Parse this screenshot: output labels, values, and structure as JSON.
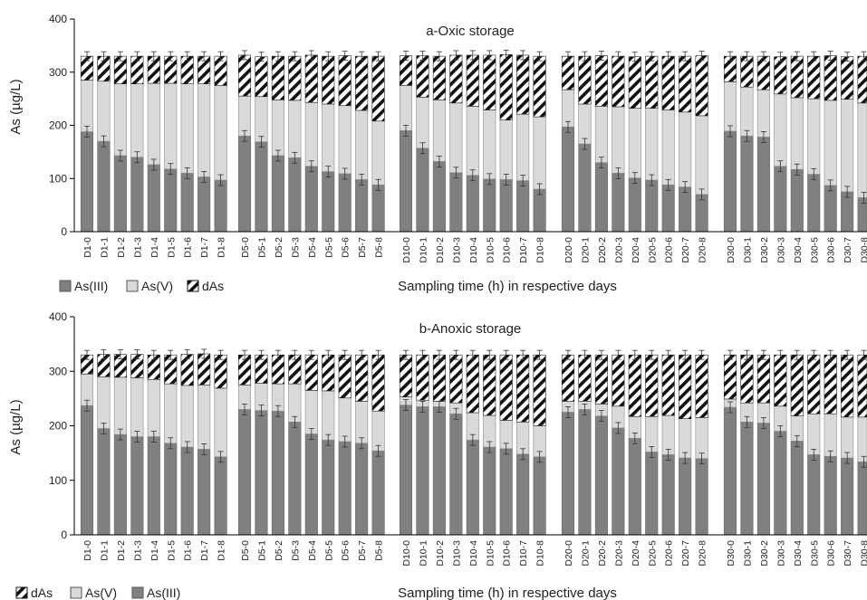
{
  "chart_data": [
    {
      "type": "bar",
      "stacked": true,
      "title": "a-Oxic storage",
      "xlabel": "Sampling time (h) in respective days",
      "ylabel": "As (µg/L)",
      "ylim": [
        0,
        400
      ],
      "yticks": [
        "0",
        "100",
        "200",
        "300",
        "400"
      ],
      "legend": [
        {
          "label": "As(III)",
          "key": "as3"
        },
        {
          "label": "As(V)",
          "key": "as5"
        },
        {
          "label": "dAs",
          "key": "das"
        }
      ],
      "legend_position": "bottom-left",
      "groups": [
        {
          "categories": [
            "D1-0",
            "D1-1",
            "D1-2",
            "D1-3",
            "D1-4",
            "D1-5",
            "D1-6",
            "D1-7",
            "D1-8"
          ],
          "as3": [
            188,
            170,
            143,
            140,
            126,
            118,
            110,
            103,
            97
          ],
          "as5": [
            97,
            113,
            135,
            138,
            153,
            161,
            168,
            175,
            178
          ],
          "das": [
            45,
            47,
            52,
            52,
            51,
            51,
            52,
            52,
            55
          ]
        },
        {
          "categories": [
            "D5-0",
            "D5-1",
            "D5-2",
            "D5-3",
            "D5-4",
            "D5-5",
            "D5-6",
            "D5-7",
            "D5-8"
          ],
          "as3": [
            180,
            169,
            143,
            139,
            123,
            113,
            109,
            98,
            88
          ],
          "as5": [
            75,
            85,
            105,
            108,
            120,
            127,
            128,
            130,
            120
          ],
          "das": [
            77,
            75,
            82,
            83,
            89,
            90,
            94,
            102,
            122
          ]
        },
        {
          "categories": [
            "D10-0",
            "D10-1",
            "D10-2",
            "D10-3",
            "D10-4",
            "D10-5",
            "D10-6",
            "D10-7",
            "D10-8"
          ],
          "as3": [
            190,
            157,
            132,
            111,
            106,
            99,
            98,
            96,
            80
          ],
          "as5": [
            85,
            96,
            116,
            131,
            130,
            130,
            112,
            125,
            136
          ],
          "das": [
            56,
            78,
            82,
            90,
            96,
            103,
            123,
            111,
            114
          ]
        },
        {
          "categories": [
            "D20-0",
            "D20-1",
            "D20-2",
            "D20-3",
            "D20-4",
            "D20-5",
            "D20-6",
            "D20-7",
            "D20-8"
          ],
          "as3": [
            197,
            165,
            130,
            110,
            101,
            97,
            88,
            84,
            70
          ],
          "as5": [
            70,
            75,
            106,
            125,
            131,
            135,
            141,
            141,
            148
          ],
          "das": [
            63,
            90,
            95,
            95,
            97,
            98,
            101,
            105,
            113
          ]
        },
        {
          "categories": [
            "D30-0",
            "D30-1",
            "D30-2",
            "D30-3",
            "D30-4",
            "D30-5",
            "D30-6",
            "D30-7",
            "D30-8"
          ],
          "as3": [
            189,
            180,
            178,
            123,
            117,
            108,
            87,
            75,
            64
          ],
          "as5": [
            93,
            92,
            89,
            136,
            135,
            142,
            160,
            174,
            178
          ],
          "das": [
            48,
            58,
            63,
            70,
            78,
            80,
            84,
            80,
            88
          ]
        }
      ]
    },
    {
      "type": "bar",
      "stacked": true,
      "title": "b-Anoxic storage",
      "xlabel": "Sampling time (h) in respective days",
      "ylabel": "As (µg/L)",
      "ylim": [
        0,
        400
      ],
      "yticks": [
        "0",
        "100",
        "200",
        "300",
        "400"
      ],
      "legend": [
        {
          "label": "dAs",
          "key": "das"
        },
        {
          "label": "As(V)",
          "key": "as5"
        },
        {
          "label": "As(III)",
          "key": "as3"
        }
      ],
      "legend_position": "bottom-left",
      "groups": [
        {
          "categories": [
            "D1-0",
            "D1-1",
            "D1-2",
            "D1-3",
            "D1-4",
            "D1-5",
            "D1-6",
            "D1-7",
            "D1-8"
          ],
          "as3": [
            237,
            195,
            184,
            180,
            180,
            168,
            161,
            157,
            143
          ],
          "as5": [
            58,
            95,
            105,
            108,
            105,
            109,
            113,
            118,
            126
          ],
          "das": [
            35,
            41,
            42,
            43,
            45,
            53,
            57,
            57,
            61
          ]
        },
        {
          "categories": [
            "D5-0",
            "D5-1",
            "D5-2",
            "D5-3",
            "D5-4",
            "D5-5",
            "D5-6",
            "D5-7",
            "D5-8"
          ],
          "as3": [
            230,
            228,
            227,
            207,
            185,
            174,
            171,
            168,
            154
          ],
          "as5": [
            45,
            50,
            50,
            70,
            80,
            90,
            80,
            77,
            73
          ],
          "das": [
            55,
            52,
            53,
            53,
            65,
            66,
            79,
            85,
            103
          ]
        },
        {
          "categories": [
            "D10-0",
            "D10-1",
            "D10-2",
            "D10-3",
            "D10-4",
            "D10-5",
            "D10-6",
            "D10-7",
            "D10-8"
          ],
          "as3": [
            238,
            235,
            235,
            222,
            174,
            161,
            158,
            148,
            143
          ],
          "as5": [
            15,
            12,
            10,
            20,
            50,
            58,
            52,
            59,
            57
          ],
          "das": [
            77,
            83,
            85,
            88,
            106,
            111,
            120,
            123,
            130
          ]
        },
        {
          "categories": [
            "D20-0",
            "D20-1",
            "D20-2",
            "D20-3",
            "D20-4",
            "D20-5",
            "D20-6",
            "D20-7",
            "D20-8"
          ],
          "as3": [
            225,
            230,
            218,
            196,
            177,
            152,
            147,
            141,
            140
          ],
          "as5": [
            20,
            15,
            22,
            40,
            40,
            65,
            72,
            72,
            75
          ],
          "das": [
            85,
            85,
            90,
            94,
            113,
            113,
            111,
            117,
            115
          ]
        },
        {
          "categories": [
            "D30-0",
            "D30-1",
            "D30-2",
            "D30-3",
            "D30-4",
            "D30-5",
            "D30-6",
            "D30-7",
            "D30-8"
          ],
          "as3": [
            234,
            207,
            205,
            190,
            172,
            147,
            144,
            141,
            134
          ],
          "as5": [
            15,
            35,
            37,
            46,
            46,
            75,
            78,
            75,
            82
          ],
          "das": [
            81,
            88,
            88,
            94,
            112,
            108,
            108,
            114,
            114
          ]
        }
      ]
    }
  ]
}
